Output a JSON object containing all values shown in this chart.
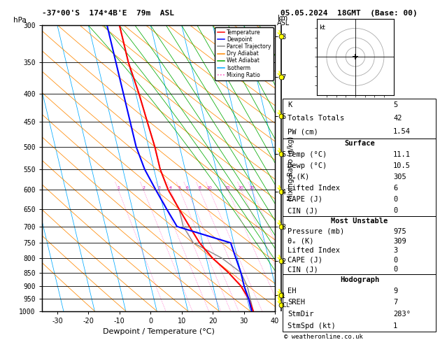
{
  "title_left": "-37°00'S  174°4B'E  79m  ASL",
  "title_right": "05.05.2024  18GMT  (Base: 00)",
  "xlabel": "Dewpoint / Temperature (°C)",
  "pressure_levels": [
    300,
    350,
    400,
    450,
    500,
    550,
    600,
    650,
    700,
    750,
    800,
    850,
    900,
    950,
    1000
  ],
  "temp_x": [
    -10,
    -10,
    -9,
    -8.5,
    -8,
    -8,
    -7,
    -5,
    -3,
    -1,
    2,
    6,
    9,
    10.5,
    11
  ],
  "temp_p": [
    300,
    350,
    400,
    450,
    500,
    550,
    600,
    650,
    700,
    750,
    800,
    850,
    900,
    950,
    1000
  ],
  "dewp_x": [
    -14,
    -14,
    -14,
    -14,
    -14,
    -13,
    -11,
    -9,
    -7,
    9,
    9.5,
    10,
    10,
    10.5,
    10.5
  ],
  "dewp_p": [
    300,
    350,
    400,
    450,
    500,
    550,
    600,
    650,
    700,
    750,
    800,
    850,
    900,
    950,
    1000
  ],
  "parcel_x": [
    -10,
    -10,
    -9,
    -8.5,
    -8,
    -8,
    -7,
    -5,
    -5,
    -3,
    5,
    10,
    11,
    11,
    11
  ],
  "parcel_p": [
    300,
    350,
    400,
    450,
    500,
    550,
    600,
    650,
    700,
    750,
    800,
    850,
    900,
    950,
    1000
  ],
  "xlim": [
    -35,
    40
  ],
  "skew": 22,
  "mixing_ratio_labels": [
    1,
    2,
    3,
    4,
    5,
    6,
    8,
    10,
    15,
    20,
    25
  ],
  "km_ticks": [
    1,
    2,
    3,
    4,
    5,
    6,
    7,
    8
  ],
  "km_p": [
    935,
    810,
    700,
    604,
    516,
    440,
    373,
    314
  ],
  "lcl_p": 975,
  "legend_items": [
    {
      "label": "Temperature",
      "color": "#ff0000",
      "ls": "-"
    },
    {
      "label": "Dewpoint",
      "color": "#0000ff",
      "ls": "-"
    },
    {
      "label": "Parcel Trajectory",
      "color": "#888888",
      "ls": "-"
    },
    {
      "label": "Dry Adiabat",
      "color": "#ff8800",
      "ls": "-"
    },
    {
      "label": "Wet Adiabat",
      "color": "#00aa00",
      "ls": "-"
    },
    {
      "label": "Isotherm",
      "color": "#00aaff",
      "ls": "-"
    },
    {
      "label": "Mixing Ratio",
      "color": "#ff44bb",
      "ls": ":"
    }
  ],
  "stats_K": "5",
  "stats_TT": "42",
  "stats_PW": "1.54",
  "surf_temp": "11.1",
  "surf_dewp": "10.5",
  "surf_theta": "305",
  "surf_li": "6",
  "surf_cape": "0",
  "surf_cin": "0",
  "mu_pres": "975",
  "mu_theta": "309",
  "mu_li": "3",
  "mu_cape": "0",
  "mu_cin": "0",
  "hodo_eh": "9",
  "hodo_sreh": "7",
  "hodo_stmdir": "283°",
  "hodo_stmspd": "1",
  "copyright": "© weatheronline.co.uk"
}
